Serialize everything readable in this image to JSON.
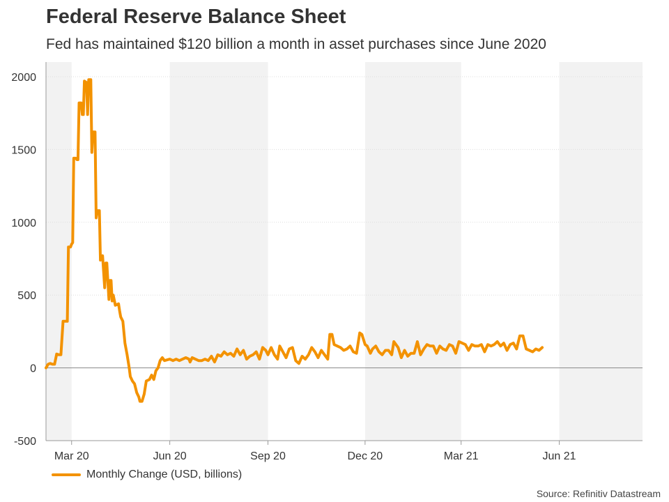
{
  "title": "Federal Reserve Balance Sheet",
  "subtitle": "Fed has maintained $120 billion a month in asset purchases since June 2020",
  "source": "Source: Refinitiv Datastream",
  "colors": {
    "line": "#f39200",
    "shade": "#f2f2f2",
    "grid": "#dddddd",
    "zero_line": "#888888",
    "text": "#333333"
  },
  "chart_data": {
    "type": "line",
    "title": "Federal Reserve Balance Sheet",
    "subtitle": "Fed has maintained $120 billion a month in asset purchases since June 2020",
    "xlabel": "",
    "ylabel": "",
    "ylim": [
      -500,
      2000
    ],
    "yticks": [
      -500,
      0,
      500,
      1000,
      1500,
      2000
    ],
    "xlim": [
      "2020-02-06",
      "2021-08-18"
    ],
    "xticks": [
      {
        "label": "Mar 20",
        "date": "2020-03-01"
      },
      {
        "label": "Jun 20",
        "date": "2020-06-01"
      },
      {
        "label": "Sep 20",
        "date": "2020-09-01"
      },
      {
        "label": "Dec 20",
        "date": "2020-12-01"
      },
      {
        "label": "Mar 21",
        "date": "2021-03-01"
      },
      {
        "label": "Jun 21",
        "date": "2021-06-01"
      }
    ],
    "shaded_bands": [
      [
        "2020-02-06",
        "2020-03-01"
      ],
      [
        "2020-06-01",
        "2020-09-01"
      ],
      [
        "2020-12-01",
        "2021-03-01"
      ],
      [
        "2021-06-01",
        "2021-08-18"
      ]
    ],
    "legend": {
      "position": "bottom-left"
    },
    "grid": true,
    "series": [
      {
        "name": "Monthly Change (USD, billions)",
        "points": [
          [
            "2020-02-06",
            0
          ],
          [
            "2020-02-08",
            25
          ],
          [
            "2020-02-10",
            30
          ],
          [
            "2020-02-12",
            25
          ],
          [
            "2020-02-14",
            25
          ],
          [
            "2020-02-16",
            95
          ],
          [
            "2020-02-18",
            90
          ],
          [
            "2020-02-20",
            90
          ],
          [
            "2020-02-22",
            320
          ],
          [
            "2020-02-26",
            320
          ],
          [
            "2020-02-27",
            830
          ],
          [
            "2020-02-29",
            830
          ],
          [
            "2020-03-01",
            850
          ],
          [
            "2020-03-02",
            860
          ],
          [
            "2020-03-03",
            1440
          ],
          [
            "2020-03-05",
            1440
          ],
          [
            "2020-03-06",
            1430
          ],
          [
            "2020-03-07",
            1430
          ],
          [
            "2020-03-08",
            1820
          ],
          [
            "2020-03-10",
            1820
          ],
          [
            "2020-03-11",
            1740
          ],
          [
            "2020-03-12",
            1740
          ],
          [
            "2020-03-13",
            1970
          ],
          [
            "2020-03-15",
            1960
          ],
          [
            "2020-03-16",
            1740
          ],
          [
            "2020-03-17",
            1980
          ],
          [
            "2020-03-19",
            1980
          ],
          [
            "2020-03-20",
            1480
          ],
          [
            "2020-03-21",
            1620
          ],
          [
            "2020-03-23",
            1620
          ],
          [
            "2020-03-24",
            1030
          ],
          [
            "2020-03-25",
            1080
          ],
          [
            "2020-03-27",
            1080
          ],
          [
            "2020-03-28",
            740
          ],
          [
            "2020-03-29",
            760
          ],
          [
            "2020-03-30",
            770
          ],
          [
            "2020-04-01",
            550
          ],
          [
            "2020-04-02",
            720
          ],
          [
            "2020-04-03",
            720
          ],
          [
            "2020-04-05",
            470
          ],
          [
            "2020-04-06",
            600
          ],
          [
            "2020-04-07",
            600
          ],
          [
            "2020-04-08",
            460
          ],
          [
            "2020-04-09",
            500
          ],
          [
            "2020-04-11",
            430
          ],
          [
            "2020-04-14",
            440
          ],
          [
            "2020-04-15",
            390
          ],
          [
            "2020-04-16",
            350
          ],
          [
            "2020-04-18",
            320
          ],
          [
            "2020-04-20",
            170
          ],
          [
            "2020-04-22",
            90
          ],
          [
            "2020-04-24",
            0
          ],
          [
            "2020-04-25",
            -60
          ],
          [
            "2020-04-27",
            -90
          ],
          [
            "2020-04-29",
            -110
          ],
          [
            "2020-05-01",
            -170
          ],
          [
            "2020-05-03",
            -200
          ],
          [
            "2020-05-04",
            -230
          ],
          [
            "2020-05-06",
            -230
          ],
          [
            "2020-05-08",
            -180
          ],
          [
            "2020-05-10",
            -90
          ],
          [
            "2020-05-13",
            -80
          ],
          [
            "2020-05-15",
            -50
          ],
          [
            "2020-05-17",
            -80
          ],
          [
            "2020-05-19",
            -20
          ],
          [
            "2020-05-21",
            0
          ],
          [
            "2020-05-23",
            50
          ],
          [
            "2020-05-25",
            70
          ],
          [
            "2020-05-27",
            50
          ],
          [
            "2020-06-01",
            60
          ],
          [
            "2020-06-04",
            50
          ],
          [
            "2020-06-07",
            60
          ],
          [
            "2020-06-10",
            50
          ],
          [
            "2020-06-13",
            60
          ],
          [
            "2020-06-16",
            70
          ],
          [
            "2020-06-19",
            60
          ],
          [
            "2020-06-20",
            40
          ],
          [
            "2020-06-22",
            70
          ],
          [
            "2020-06-25",
            60
          ],
          [
            "2020-06-28",
            50
          ],
          [
            "2020-07-01",
            50
          ],
          [
            "2020-07-04",
            60
          ],
          [
            "2020-07-07",
            50
          ],
          [
            "2020-07-10",
            80
          ],
          [
            "2020-07-13",
            40
          ],
          [
            "2020-07-16",
            90
          ],
          [
            "2020-07-19",
            80
          ],
          [
            "2020-07-22",
            110
          ],
          [
            "2020-07-25",
            90
          ],
          [
            "2020-07-28",
            100
          ],
          [
            "2020-07-31",
            80
          ],
          [
            "2020-08-03",
            130
          ],
          [
            "2020-08-06",
            90
          ],
          [
            "2020-08-09",
            120
          ],
          [
            "2020-08-12",
            60
          ],
          [
            "2020-08-15",
            80
          ],
          [
            "2020-08-18",
            90
          ],
          [
            "2020-08-21",
            110
          ],
          [
            "2020-08-24",
            60
          ],
          [
            "2020-08-27",
            140
          ],
          [
            "2020-08-30",
            120
          ],
          [
            "2020-09-01",
            90
          ],
          [
            "2020-09-04",
            140
          ],
          [
            "2020-09-07",
            90
          ],
          [
            "2020-09-10",
            60
          ],
          [
            "2020-09-12",
            150
          ],
          [
            "2020-09-15",
            110
          ],
          [
            "2020-09-18",
            70
          ],
          [
            "2020-09-21",
            130
          ],
          [
            "2020-09-24",
            140
          ],
          [
            "2020-09-27",
            50
          ],
          [
            "2020-09-30",
            30
          ],
          [
            "2020-10-03",
            80
          ],
          [
            "2020-10-06",
            60
          ],
          [
            "2020-10-09",
            90
          ],
          [
            "2020-10-12",
            140
          ],
          [
            "2020-10-15",
            110
          ],
          [
            "2020-10-18",
            70
          ],
          [
            "2020-10-21",
            120
          ],
          [
            "2020-10-24",
            90
          ],
          [
            "2020-10-27",
            60
          ],
          [
            "2020-10-29",
            230
          ],
          [
            "2020-10-31",
            230
          ],
          [
            "2020-11-02",
            160
          ],
          [
            "2020-11-05",
            150
          ],
          [
            "2020-11-08",
            140
          ],
          [
            "2020-11-11",
            120
          ],
          [
            "2020-11-14",
            130
          ],
          [
            "2020-11-17",
            150
          ],
          [
            "2020-11-20",
            110
          ],
          [
            "2020-11-23",
            100
          ],
          [
            "2020-11-26",
            240
          ],
          [
            "2020-11-28",
            230
          ],
          [
            "2020-12-01",
            160
          ],
          [
            "2020-12-03",
            150
          ],
          [
            "2020-12-06",
            100
          ],
          [
            "2020-12-08",
            130
          ],
          [
            "2020-12-11",
            150
          ],
          [
            "2020-12-14",
            110
          ],
          [
            "2020-12-17",
            90
          ],
          [
            "2020-12-20",
            120
          ],
          [
            "2020-12-23",
            120
          ],
          [
            "2020-12-26",
            90
          ],
          [
            "2020-12-28",
            180
          ],
          [
            "2021-01-01",
            140
          ],
          [
            "2021-01-04",
            70
          ],
          [
            "2021-01-07",
            120
          ],
          [
            "2021-01-10",
            80
          ],
          [
            "2021-01-13",
            100
          ],
          [
            "2021-01-16",
            100
          ],
          [
            "2021-01-19",
            180
          ],
          [
            "2021-01-22",
            90
          ],
          [
            "2021-01-25",
            130
          ],
          [
            "2021-01-28",
            160
          ],
          [
            "2021-01-31",
            150
          ],
          [
            "2021-02-03",
            150
          ],
          [
            "2021-02-06",
            100
          ],
          [
            "2021-02-09",
            150
          ],
          [
            "2021-02-12",
            130
          ],
          [
            "2021-02-15",
            120
          ],
          [
            "2021-02-18",
            160
          ],
          [
            "2021-02-21",
            150
          ],
          [
            "2021-02-24",
            100
          ],
          [
            "2021-02-27",
            180
          ],
          [
            "2021-03-02",
            170
          ],
          [
            "2021-03-05",
            160
          ],
          [
            "2021-03-08",
            120
          ],
          [
            "2021-03-11",
            160
          ],
          [
            "2021-03-14",
            150
          ],
          [
            "2021-03-17",
            150
          ],
          [
            "2021-03-20",
            160
          ],
          [
            "2021-03-23",
            110
          ],
          [
            "2021-03-26",
            160
          ],
          [
            "2021-03-29",
            150
          ],
          [
            "2021-04-01",
            160
          ],
          [
            "2021-04-04",
            180
          ],
          [
            "2021-04-07",
            150
          ],
          [
            "2021-04-10",
            170
          ],
          [
            "2021-04-13",
            120
          ],
          [
            "2021-04-16",
            160
          ],
          [
            "2021-04-19",
            170
          ],
          [
            "2021-04-22",
            130
          ],
          [
            "2021-04-25",
            220
          ],
          [
            "2021-04-28",
            220
          ],
          [
            "2021-05-01",
            130
          ],
          [
            "2021-05-04",
            120
          ],
          [
            "2021-05-07",
            110
          ],
          [
            "2021-05-10",
            130
          ],
          [
            "2021-05-13",
            120
          ],
          [
            "2021-05-16",
            140
          ]
        ]
      }
    ]
  }
}
